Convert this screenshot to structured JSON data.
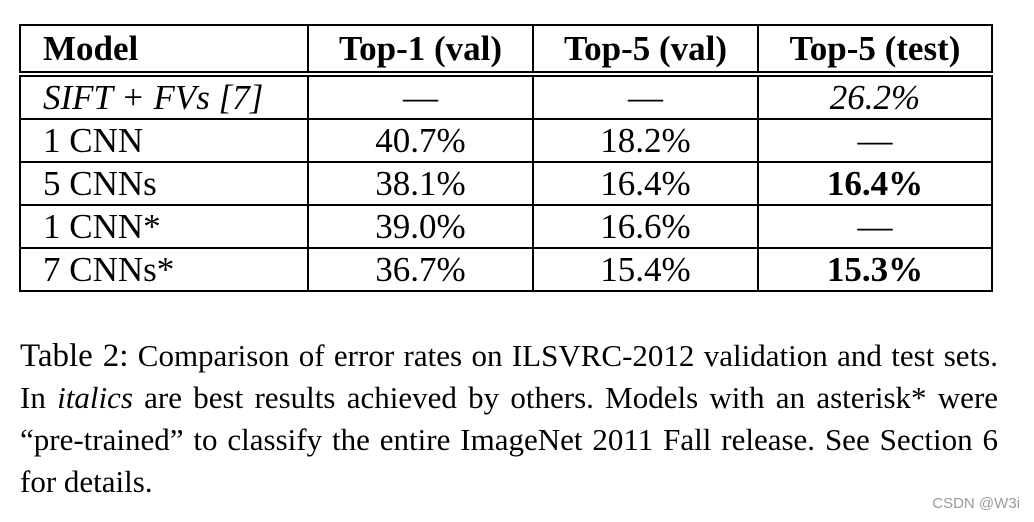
{
  "table": {
    "headers": [
      "Model",
      "Top-1 (val)",
      "Top-5 (val)",
      "Top-5 (test)"
    ],
    "rows": [
      {
        "model": "SIFT + FVs [7]",
        "top1_val": "—",
        "top5_val": "—",
        "top5_test": "26.2%"
      },
      {
        "model": "1 CNN",
        "top1_val": "40.7%",
        "top5_val": "18.2%",
        "top5_test": "—"
      },
      {
        "model": "5 CNNs",
        "top1_val": "38.1%",
        "top5_val": "16.4%",
        "top5_test": "16.4%"
      },
      {
        "model": "1 CNN*",
        "top1_val": "39.0%",
        "top5_val": "16.6%",
        "top5_test": "—"
      },
      {
        "model": "7 CNNs*",
        "top1_val": "36.7%",
        "top5_val": "15.4%",
        "top5_test": "15.3%"
      }
    ]
  },
  "caption": {
    "label": "Table 2:",
    "text_1": "Comparison of error rates on ILSVRC-2012 validation and test sets. In",
    "italic_word": "italics",
    "text_2": "are best results achieved by others. Models with an asterisk* were “pre-trained” to classify the entire ImageNet 2011 Fall release. See Section 6 for details."
  },
  "watermark": "CSDN @W3i"
}
